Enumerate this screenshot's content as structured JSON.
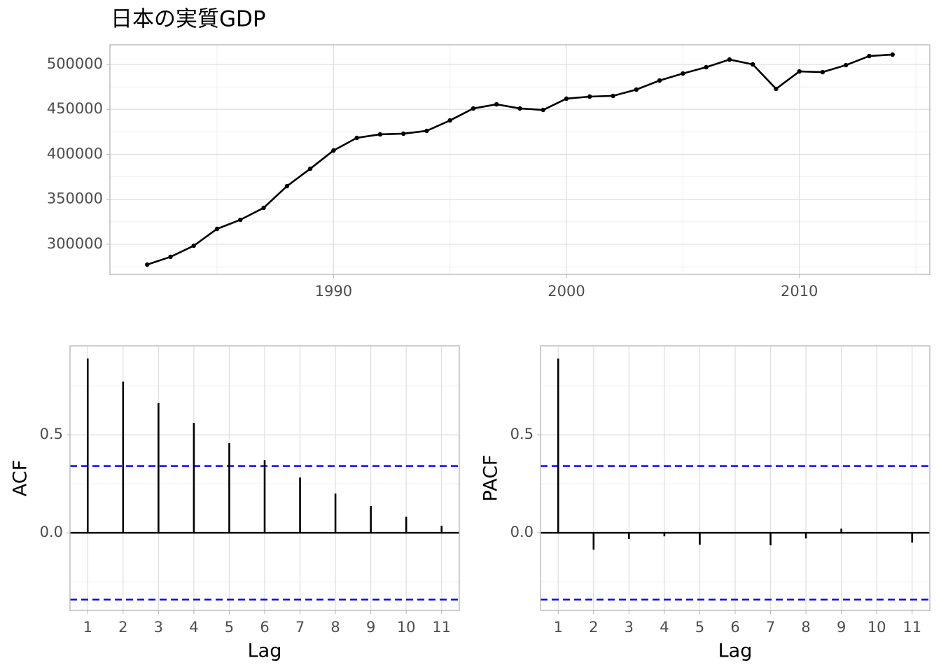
{
  "chart_data": [
    {
      "type": "line",
      "title": "日本の実質GDP",
      "x": [
        1982,
        1983,
        1984,
        1985,
        1986,
        1987,
        1988,
        1989,
        1990,
        1991,
        1992,
        1993,
        1994,
        1995,
        1996,
        1997,
        1998,
        1999,
        2000,
        2001,
        2002,
        2003,
        2004,
        2005,
        2006,
        2007,
        2008,
        2009,
        2010,
        2011,
        2012,
        2013,
        2014
      ],
      "values": [
        277400,
        286000,
        298400,
        317100,
        327200,
        340500,
        364600,
        384000,
        404300,
        418300,
        422200,
        423000,
        426100,
        437700,
        451000,
        455600,
        451000,
        449400,
        461900,
        464200,
        465000,
        472000,
        482100,
        489900,
        496900,
        505400,
        500000,
        472800,
        492200,
        491400,
        499200,
        509300,
        510900
      ],
      "color": "#000000",
      "xlim": [
        1980.4,
        2015.6
      ],
      "xticks": [
        1990,
        2000,
        2010
      ],
      "x_minor_ticks": [
        1985,
        1995,
        2005,
        2015
      ],
      "ylim": [
        266500,
        521800
      ],
      "yticks": [
        300000,
        350000,
        400000,
        450000,
        500000
      ],
      "y_minor_ticks": [
        275000,
        325000,
        375000,
        425000,
        475000
      ],
      "grid": true
    },
    {
      "type": "stem",
      "x_label": "Lag",
      "y_label": "ACF",
      "x": [
        1,
        2,
        3,
        4,
        5,
        6,
        7,
        8,
        9,
        10,
        11
      ],
      "values": [
        0.889,
        0.771,
        0.661,
        0.561,
        0.457,
        0.371,
        0.282,
        0.2,
        0.136,
        0.082,
        0.036
      ],
      "color": "#000000",
      "ci": [
        0.341,
        -0.341
      ],
      "ci_color": "#0000ff",
      "xlim": [
        0.5,
        11.5
      ],
      "xticks": [
        1,
        2,
        3,
        4,
        5,
        6,
        7,
        8,
        9,
        10,
        11
      ],
      "ylim": [
        -0.396,
        0.954
      ],
      "yticks": [
        {
          "value": 0,
          "label": "0.0"
        },
        {
          "value": 0.5,
          "label": "0.5"
        }
      ],
      "y_minor_ticks": [
        -0.25,
        0.25,
        0.75
      ],
      "grid": true
    },
    {
      "type": "stem",
      "x_label": "Lag",
      "y_label": "PACF",
      "x": [
        1,
        2,
        3,
        4,
        5,
        6,
        7,
        8,
        9,
        10,
        11
      ],
      "values": [
        0.889,
        -0.086,
        -0.032,
        -0.018,
        -0.061,
        0.002,
        -0.064,
        -0.029,
        0.021,
        -0.002,
        -0.05
      ],
      "color": "#000000",
      "ci": [
        0.341,
        -0.341
      ],
      "ci_color": "#0000ff",
      "xlim": [
        0.5,
        11.5
      ],
      "xticks": [
        1,
        2,
        3,
        4,
        5,
        6,
        7,
        8,
        9,
        10,
        11
      ],
      "ylim": [
        -0.396,
        0.954
      ],
      "yticks": [
        {
          "value": 0,
          "label": "0.0"
        },
        {
          "value": 0.5,
          "label": "0.5"
        }
      ],
      "y_minor_ticks": [
        -0.25,
        0.25,
        0.75
      ],
      "grid": true
    }
  ]
}
